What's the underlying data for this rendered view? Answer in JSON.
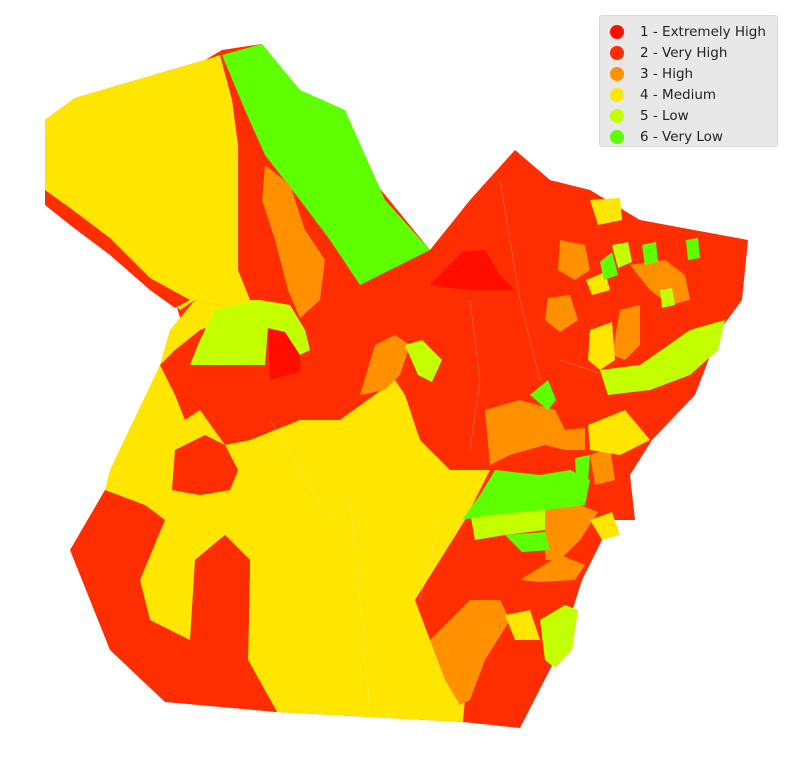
{
  "colors": {
    "extremely_high": "#ff0d00",
    "very_high": "#ff2e00",
    "high": "#ff9100",
    "medium": "#ffe600",
    "low": "#c3ff00",
    "very_low": "#5eff00"
  },
  "legend": {
    "items": [
      {
        "label": "1 - Extremely High",
        "color": "#ff0d00"
      },
      {
        "label": "2 - Very High",
        "color": "#ff2e00"
      },
      {
        "label": "3 - High",
        "color": "#ff9100"
      },
      {
        "label": "4 - Medium",
        "color": "#ffe600"
      },
      {
        "label": "5 - Low",
        "color": "#c3ff00"
      },
      {
        "label": "6 - Very Low",
        "color": "#5eff00"
      }
    ]
  }
}
